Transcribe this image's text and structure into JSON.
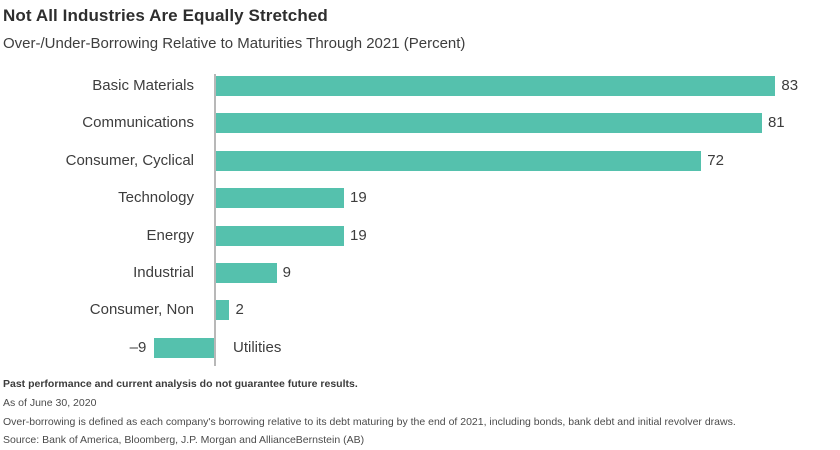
{
  "header": {
    "title": "Not All Industries Are Equally Stretched",
    "subtitle": "Over-/Under-Borrowing Relative to Maturities Through 2021 (Percent)"
  },
  "chart_data": {
    "type": "bar",
    "orientation": "horizontal",
    "title": "Not All Industries Are Equally Stretched",
    "subtitle": "Over-/Under-Borrowing Relative to Maturities Through 2021 (Percent)",
    "unit": "percent",
    "categories": [
      "Basic Materials",
      "Communications",
      "Consumer, Cyclical",
      "Technology",
      "Energy",
      "Industrial",
      "Consumer, Non",
      "Utilities"
    ],
    "values": [
      83,
      81,
      72,
      19,
      19,
      9,
      2,
      -9
    ],
    "value_labels": [
      "83",
      "81",
      "72",
      "19",
      "19",
      "9",
      "2",
      "–9"
    ],
    "xlim": [
      -20,
      92
    ],
    "grid": false,
    "legend": false,
    "bar_color": "#55c1ad",
    "axis_color": "#b8b8b8",
    "label_color": "#3d3d3d"
  },
  "footnotes": {
    "disclaimer": "Past performance and current analysis do not guarantee future results.",
    "as_of": "As of June 30, 2020",
    "definition": "Over-borrowing is defined as each company's borrowing relative to its debt maturing by the end of 2021, including bonds, bank debt and initial revolver draws.",
    "source": "Source:  Bank of America, Bloomberg, J.P. Morgan and AllianceBernstein (AB)"
  }
}
